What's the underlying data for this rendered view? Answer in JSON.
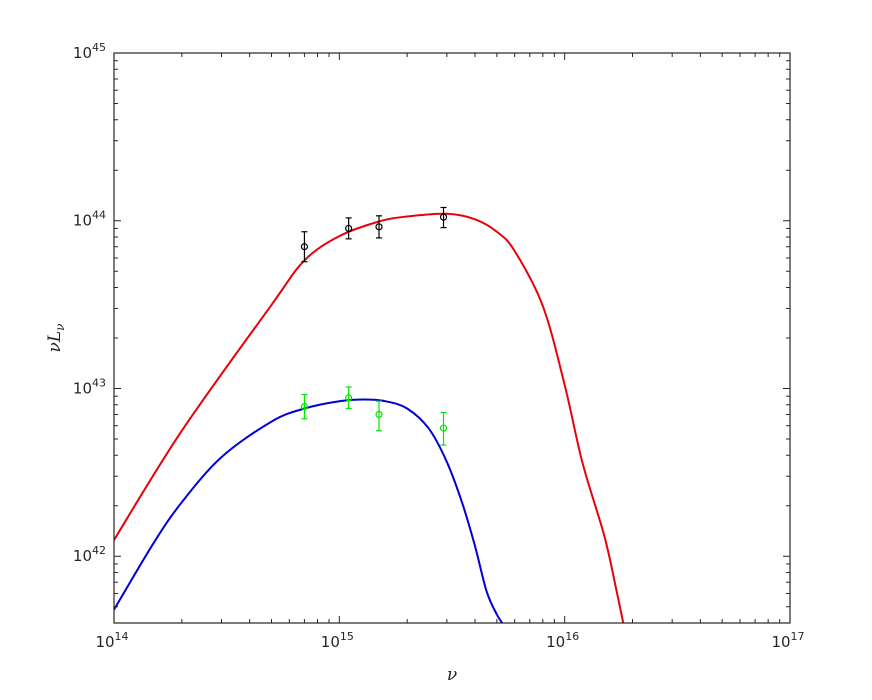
{
  "chart_data": {
    "type": "line",
    "title": "",
    "xlabel": "ν",
    "ylabel": "νL",
    "ylabel_subscript": "ν",
    "x_scale": "log",
    "y_scale": "log",
    "xlim": [
      100000000000000.0,
      1e+17
    ],
    "ylim": [
      4e+41,
      1e+45
    ],
    "x_ticks": [
      {
        "base": "10",
        "exp": "14",
        "value": 100000000000000.0
      },
      {
        "base": "10",
        "exp": "15",
        "value": 1000000000000000.0
      },
      {
        "base": "10",
        "exp": "16",
        "value": 1e+16
      },
      {
        "base": "10",
        "exp": "17",
        "value": 1e+17
      }
    ],
    "y_ticks": [
      {
        "base": "10",
        "exp": "42",
        "value": 1e+42
      },
      {
        "base": "10",
        "exp": "43",
        "value": 1e+43
      },
      {
        "base": "10",
        "exp": "44",
        "value": 1e+44
      },
      {
        "base": "10",
        "exp": "45",
        "value": 1e+45
      }
    ],
    "grid": false,
    "series": [
      {
        "kind": "line",
        "color": "#e8000b",
        "x": [
          100000000000000.0,
          200000000000000.0,
          500000000000000.0,
          700000000000000.0,
          1000000000000000.0,
          1500000000000000.0,
          2000000000000000.0,
          3000000000000000.0,
          4000000000000000.0,
          5000000000000000.0,
          6000000000000000.0,
          8000000000000000.0,
          1e+16,
          1.2e+16,
          1.5e+16,
          1.7e+16,
          1.82e+16
        ],
        "y": [
          1.25e+42,
          5.6e+42,
          3.15e+43,
          5.8e+43,
          8.1e+43,
          9.9e+43,
          1.06e+44,
          1.1e+44,
          1.02e+44,
          8.6e+43,
          6.6e+43,
          3.1e+43,
          1.05e+43,
          3.6e+42,
          1.32e+42,
          6.2e+41,
          4e+41
        ]
      },
      {
        "kind": "line",
        "color": "#0000d6",
        "x": [
          100000000000000.0,
          150000000000000.0,
          200000000000000.0,
          300000000000000.0,
          500000000000000.0,
          700000000000000.0,
          1000000000000000.0,
          1300000000000000.0,
          1600000000000000.0,
          2000000000000000.0,
          2500000000000000.0,
          3000000000000000.0,
          3500000000000000.0,
          4000000000000000.0,
          4500000000000000.0,
          5000000000000000.0,
          5500000000000000.0
        ],
        "y": [
          4.8e+41,
          1.2e+42,
          2.1e+42,
          3.9e+42,
          6.35e+42,
          7.6e+42,
          8.4e+42,
          8.6e+42,
          8.4e+42,
          7.6e+42,
          5.75e+42,
          3.65e+42,
          2.1e+42,
          1.15e+42,
          6.2e+41,
          4.5e+41,
          3.7e+41
        ]
      },
      {
        "kind": "errorbar",
        "color": "#000000",
        "marker": "circle",
        "x": [
          700000000000000.0,
          1100000000000000.0,
          1500000000000000.0,
          2900000000000000.0
        ],
        "y": [
          7e+43,
          9e+43,
          9.2e+43,
          1.05e+44
        ],
        "y_low": [
          5.7e+43,
          7.8e+43,
          7.9e+43,
          9.1e+43
        ],
        "y_high": [
          8.6e+43,
          1.04e+44,
          1.07e+44,
          1.2e+44
        ]
      },
      {
        "kind": "errorbar",
        "color": "#00e600",
        "marker": "circle",
        "x": [
          700000000000000.0,
          1100000000000000.0,
          1500000000000000.0,
          2900000000000000.0
        ],
        "y": [
          7.8e+42,
          8.8e+42,
          7e+42,
          5.8e+42
        ],
        "y_low": [
          6.6e+42,
          7.6e+42,
          5.6e+42,
          4.6e+42
        ],
        "y_high": [
          9.2e+42,
          1.02e+43,
          8.4e+42,
          7.2e+42
        ]
      }
    ]
  }
}
